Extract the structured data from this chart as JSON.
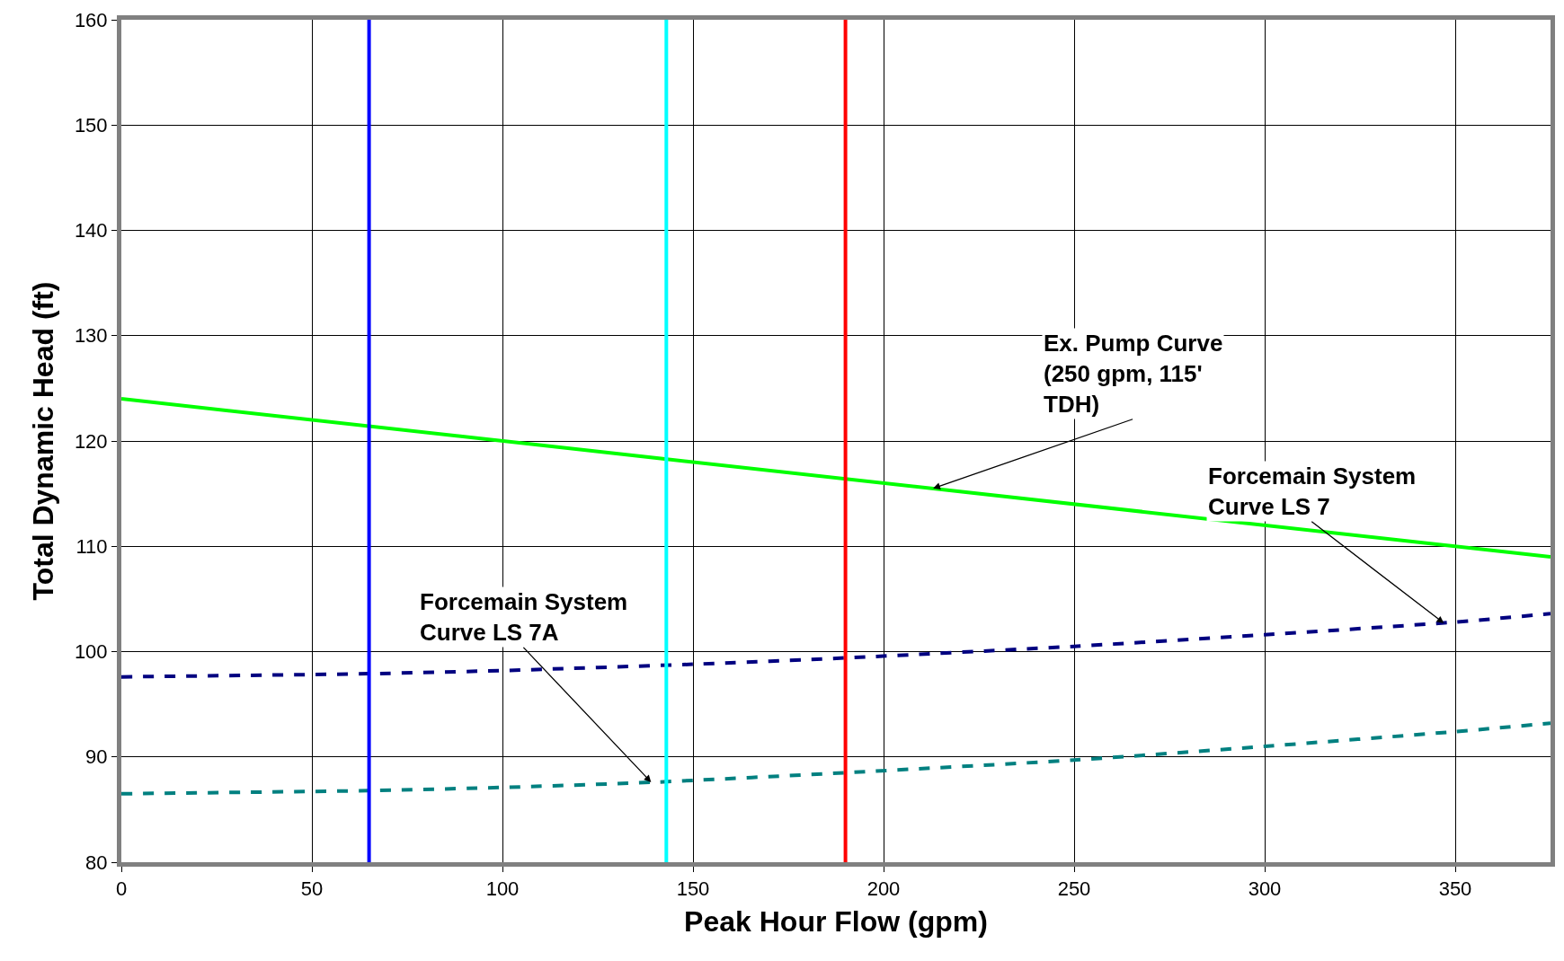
{
  "chart_data": {
    "type": "line",
    "xlabel": "Peak Hour Flow (gpm)",
    "ylabel": "Total Dynamic Head (ft)",
    "xlim": [
      0,
      375
    ],
    "ylim": [
      80,
      160
    ],
    "xticks": [
      0,
      50,
      100,
      150,
      200,
      250,
      300,
      350
    ],
    "yticks": [
      80,
      90,
      100,
      110,
      120,
      130,
      140,
      150,
      160
    ],
    "grid": true,
    "series": [
      {
        "color": "#00ff00",
        "line_style": "solid",
        "x": [
          0,
          375
        ],
        "values": [
          124,
          109
        ]
      },
      {
        "color": "#000080",
        "line_style": "dashed",
        "x": [
          0,
          65,
          100,
          150,
          190,
          250,
          300,
          350,
          375
        ],
        "values": [
          97.6,
          97.9,
          98.2,
          98.8,
          99.4,
          100.5,
          101.6,
          102.8,
          103.6
        ]
      },
      {
        "color": "#008080",
        "line_style": "dashed",
        "x": [
          0,
          65,
          100,
          140,
          190,
          250,
          300,
          350,
          375
        ],
        "values": [
          86.5,
          86.8,
          87.1,
          87.6,
          88.5,
          89.7,
          91,
          92.4,
          93.2
        ]
      }
    ],
    "ref_lines": [
      {
        "axis": "x",
        "value": 65,
        "color": "#0000ff"
      },
      {
        "axis": "x",
        "value": 143,
        "color": "#00ffff"
      },
      {
        "axis": "x",
        "value": 190,
        "color": "#ff0000"
      }
    ],
    "annotations": [
      {
        "text": "Ex. Pump Curve\n(250 gpm, 115'\nTDH)",
        "x": 213,
        "y": 115.5
      },
      {
        "text": "Forcemain System\nCurve LS 7",
        "x": 347,
        "y": 102.7
      },
      {
        "text": "Forcemain System\nCurve LS 7A",
        "x": 139,
        "y": 87.6
      }
    ]
  }
}
